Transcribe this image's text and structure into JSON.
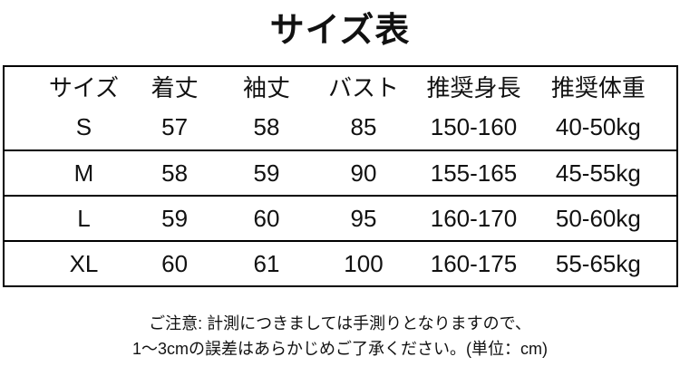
{
  "title": "サイズ表",
  "table": {
    "headers": [
      "サイズ",
      "着丈",
      "袖丈",
      "バスト",
      "推奨身長",
      "推奨体重"
    ],
    "rows": [
      [
        "S",
        "57",
        "58",
        "85",
        "150-160",
        "40-50kg"
      ],
      [
        "M",
        "58",
        "59",
        "90",
        "155-165",
        "45-55kg"
      ],
      [
        "L",
        "59",
        "60",
        "95",
        "160-170",
        "50-60kg"
      ],
      [
        "XL",
        "60",
        "61",
        "100",
        "160-175",
        "55-65kg"
      ]
    ]
  },
  "note": {
    "line1": "ご注意: 計測につきましては手測りとなりますので、",
    "line2": "1〜3cmの誤差はあらかじめご了承ください。(単位：cm)"
  },
  "colors": {
    "text": "#111111",
    "border": "#000000",
    "background": "#ffffff"
  }
}
